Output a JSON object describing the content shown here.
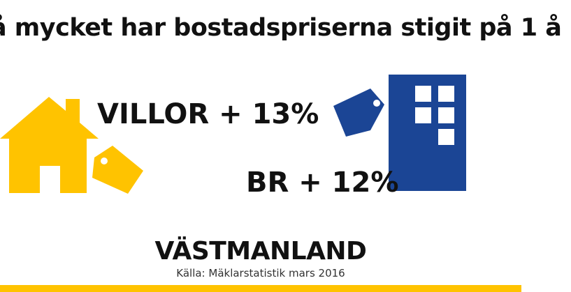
{
  "headline": "å mycket har bostadspriserna stigit på 1 å",
  "villor": {
    "label": "VILLOR + 13%"
  },
  "br": {
    "label": "BR + 12%"
  },
  "region": "VÄSTMANLAND",
  "source": "Källa: Mäklarstatistik mars 2016",
  "icons": [
    "house-icon",
    "price-tag-icon",
    "apartment-building-icon"
  ],
  "colors": {
    "yellow": "#FFC300",
    "blue": "#1B4595",
    "text": "#111111",
    "background": "#FFFFFF"
  }
}
